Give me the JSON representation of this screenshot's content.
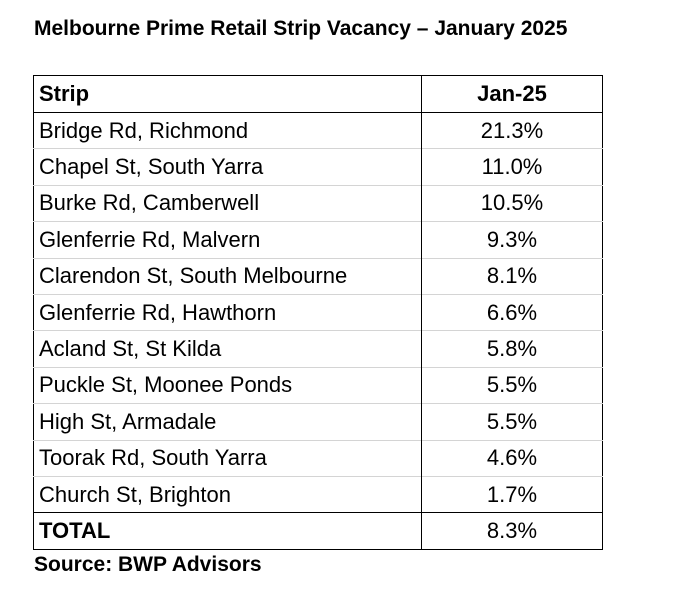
{
  "title": "Melbourne Prime Retail Strip Vacancy – January 2025",
  "table": {
    "header": [
      "Strip",
      "Jan-25"
    ],
    "rows": [
      [
        "Bridge Rd, Richmond",
        "21.3%"
      ],
      [
        "Chapel St, South Yarra",
        "11.0%"
      ],
      [
        "Burke Rd, Camberwell",
        "10.5%"
      ],
      [
        "Glenferrie Rd, Malvern",
        "9.3%"
      ],
      [
        "Clarendon St, South Melbourne",
        "8.1%"
      ],
      [
        "Glenferrie Rd, Hawthorn",
        "6.6%"
      ],
      [
        "Acland St, St Kilda",
        "5.8%"
      ],
      [
        "Puckle St, Moonee Ponds",
        "5.5%"
      ],
      [
        "High St, Armadale",
        "5.5%"
      ],
      [
        "Toorak Rd, South Yarra",
        "4.6%"
      ],
      [
        "Church St, Brighton",
        "1.7%"
      ]
    ],
    "total": [
      "TOTAL",
      "8.3%"
    ]
  },
  "source": "Source: BWP Advisors"
}
